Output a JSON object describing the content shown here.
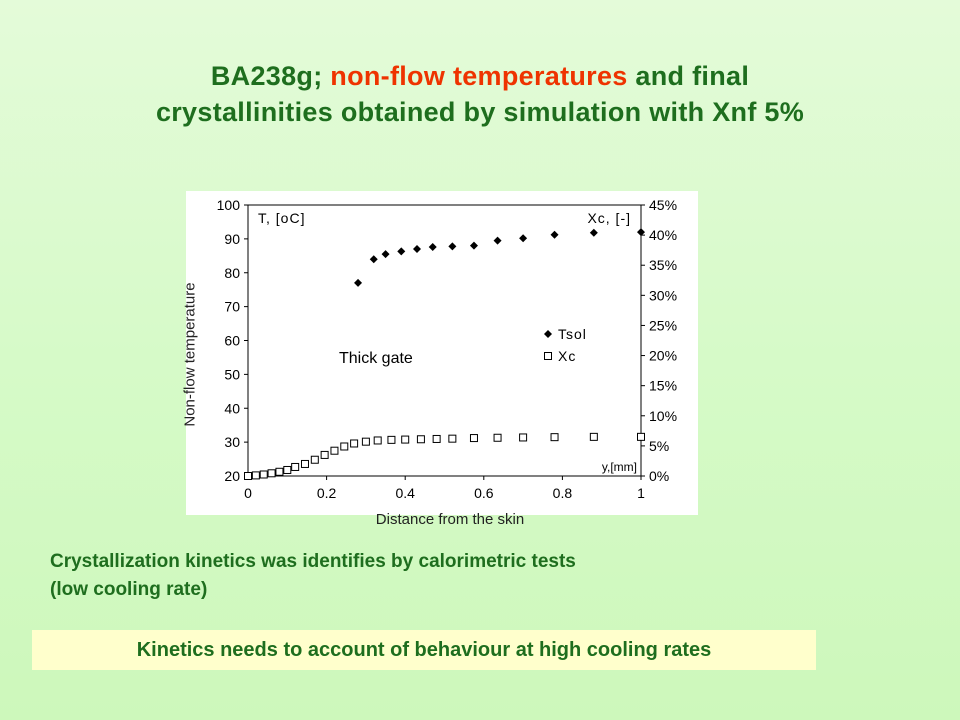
{
  "slide": {
    "title_part1": "BA238g; ",
    "title_highlight": "non-flow temperatures",
    "title_part2": " and final",
    "title_line2": "crystallinities obtained by simulation  with  Xnf 5%",
    "note1_line1": "Crystallization kinetics was identifies by calorimetric tests",
    "note1_line2": "(low cooling rate)",
    "note2": "Kinetics needs to account of behaviour at high cooling rates",
    "colors": {
      "text": "#1e6e1e",
      "highlight": "#ee3300",
      "note_box": "#ffffcc"
    }
  },
  "chart_data": {
    "type": "scatter",
    "xlabel": "Distance from the skin",
    "ylabel": "Non-flow temperature",
    "x_unit_label": "y,[mm]",
    "y_left_unit_label": "T, [oC]",
    "y_right_unit_label": "Xc, [-]",
    "annotation": "Thick gate",
    "xlim": [
      0,
      1
    ],
    "ylim_left": [
      20,
      100
    ],
    "ylim_right": [
      0,
      45
    ],
    "x_ticks": [
      "0",
      "0.2",
      "0.4",
      "0.6",
      "0.8",
      "1"
    ],
    "y_left_ticks": [
      "20",
      "30",
      "40",
      "50",
      "60",
      "70",
      "80",
      "90",
      "100"
    ],
    "y_right_ticks": [
      "0%",
      "5%",
      "10%",
      "15%",
      "20%",
      "25%",
      "30%",
      "35%",
      "40%",
      "45%"
    ],
    "legend_position": "center-right",
    "series": [
      {
        "name": "Tsol",
        "axis": "left",
        "marker": "diamond",
        "x": [
          0.28,
          0.32,
          0.35,
          0.39,
          0.43,
          0.47,
          0.52,
          0.575,
          0.635,
          0.7,
          0.78,
          0.88,
          1.0
        ],
        "y": [
          77,
          84,
          85.5,
          86.3,
          87,
          87.6,
          87.8,
          88,
          89.5,
          90.2,
          91.2,
          91.8,
          92
        ]
      },
      {
        "name": "Xc",
        "axis": "right",
        "marker": "open-square",
        "x": [
          0.0,
          0.02,
          0.04,
          0.06,
          0.08,
          0.1,
          0.12,
          0.145,
          0.17,
          0.195,
          0.22,
          0.245,
          0.27,
          0.3,
          0.33,
          0.365,
          0.4,
          0.44,
          0.48,
          0.52,
          0.575,
          0.635,
          0.7,
          0.78,
          0.88,
          1.0
        ],
        "y": [
          0.0,
          0.1,
          0.25,
          0.45,
          0.7,
          1.0,
          1.5,
          2.0,
          2.7,
          3.5,
          4.2,
          4.9,
          5.4,
          5.7,
          5.9,
          6.0,
          6.05,
          6.1,
          6.15,
          6.2,
          6.3,
          6.35,
          6.4,
          6.45,
          6.5,
          6.5
        ]
      }
    ]
  }
}
